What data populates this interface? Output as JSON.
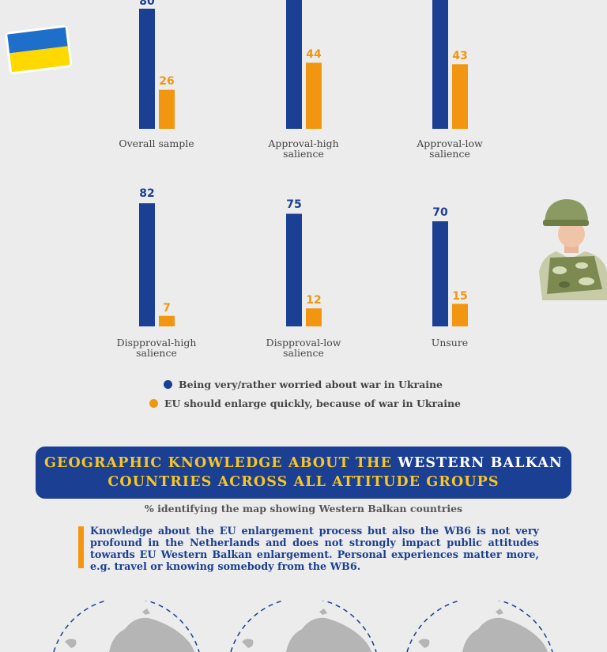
{
  "colors": {
    "navy": "#1a3f93",
    "orange": "#f29611",
    "banner_yellow": "#f7c624",
    "white": "#ffffff",
    "background": "#ececec"
  },
  "chart_data": {
    "type": "bar",
    "categories": [
      "Overall sample",
      "Approval-high salience",
      "Approval-low salience",
      "Dispproval-high salience",
      "Dispproval-low salience",
      "Unsure"
    ],
    "series": [
      {
        "name": "Being very/rather worried about war in Ukraine",
        "values": [
          80,
          null,
          null,
          82,
          75,
          70
        ]
      },
      {
        "name": "EU should enlarge quickly, because of war in Ukraine",
        "values": [
          26,
          44,
          43,
          7,
          12,
          15
        ]
      }
    ],
    "labels": {
      "navy": [
        "80",
        "",
        "",
        "82",
        "75",
        "70"
      ],
      "orange": [
        "26",
        "44",
        "43",
        "7",
        "12",
        "15"
      ]
    },
    "category_lines": [
      [
        "Overall sample"
      ],
      [
        "Approval-high",
        "salience"
      ],
      [
        "Approval-low",
        "salience"
      ],
      [
        "Dispproval-high",
        "salience"
      ],
      [
        "Dispproval-low",
        "salience"
      ],
      [
        "Unsure"
      ]
    ],
    "legend_position": "bottom-center"
  },
  "legend": {
    "item1": "Being very/rather worried about war in Ukraine",
    "item2": "EU should enlarge quickly, because of war in Ukraine"
  },
  "section": {
    "title_part1": "GEOGRAPHIC KNOWLEDGE ABOUT THE",
    "title_part2": "WESTERN BALKAN",
    "title_line2": "COUNTRIES ACROSS ALL ATTITUDE GROUPS",
    "subtitle": "% identifying the map showing Western Balkan countries",
    "note": "Knowledge about the EU enlargement process but also the WB6 is not very profound in the Netherlands and does not strongly impact public attitudes towards EU Western Balkan enlargement. Personal experiences matter more, e.g. travel or knowing somebody from the WB6."
  },
  "icons": [
    "ukraine-flag-icon",
    "soldier-icon",
    "globe-map-icon"
  ]
}
